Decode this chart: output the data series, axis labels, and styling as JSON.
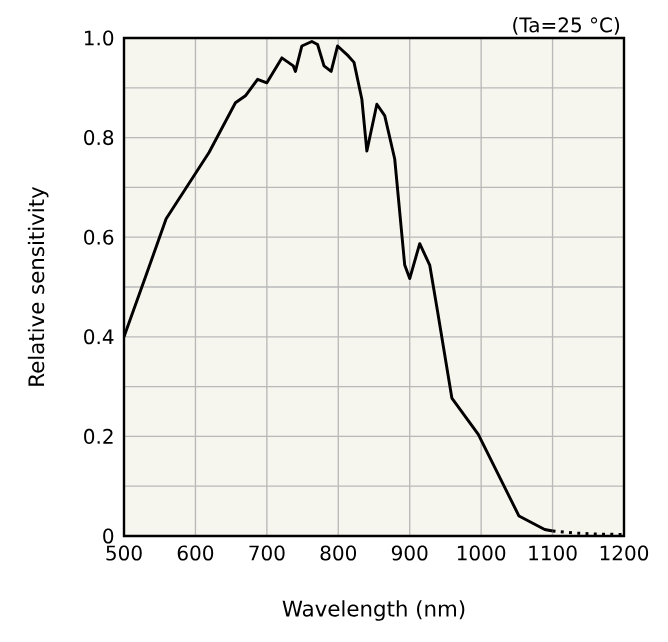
{
  "chart_data": {
    "type": "line",
    "xlabel": "Wavelength (nm)",
    "ylabel": "Relative sensitivity",
    "annotations": [
      "(Ta=25 °C)"
    ],
    "xlim": [
      500,
      1200
    ],
    "xticks": [
      500,
      600,
      700,
      800,
      900,
      1000,
      1100,
      1200
    ],
    "ylim": [
      0,
      1
    ],
    "yticks": [
      0,
      {
        "value": 0.1,
        "label": null
      },
      0.2,
      {
        "value": 0.3,
        "label": null
      },
      0.4,
      {
        "value": 0.5,
        "label": null
      },
      0.6,
      {
        "value": 0.7,
        "label": null
      },
      0.8,
      {
        "value": 0.9,
        "label": null
      },
      {
        "value": 1,
        "label": "1.0"
      }
    ],
    "grid": true,
    "marker": "none",
    "series": [
      {
        "color": "#000000",
        "line_style": "solid",
        "x": [
          500,
          530,
          559,
          619,
          656,
          670,
          687,
          700,
          721,
          737,
          740,
          749,
          763,
          771,
          780,
          790,
          799,
          814,
          822,
          833,
          840,
          854,
          865,
          879,
          893,
          900,
          914,
          928,
          939,
          959,
          996,
          1053,
          1089,
          1100
        ],
        "values": [
          0.4,
          0.52,
          0.637,
          0.77,
          0.87,
          0.884,
          0.917,
          0.91,
          0.96,
          0.944,
          0.933,
          0.984,
          0.993,
          0.987,
          0.944,
          0.933,
          0.984,
          0.964,
          0.951,
          0.877,
          0.773,
          0.867,
          0.844,
          0.757,
          0.544,
          0.517,
          0.587,
          0.544,
          0.451,
          0.277,
          0.204,
          0.04,
          0.013,
          0.01
        ]
      },
      {
        "color": "#000000",
        "line_style": "dotted",
        "x": [
          1100,
          1130,
          1160,
          1200
        ],
        "values": [
          0.01,
          0.006,
          0.004,
          0.003
        ]
      }
    ]
  }
}
